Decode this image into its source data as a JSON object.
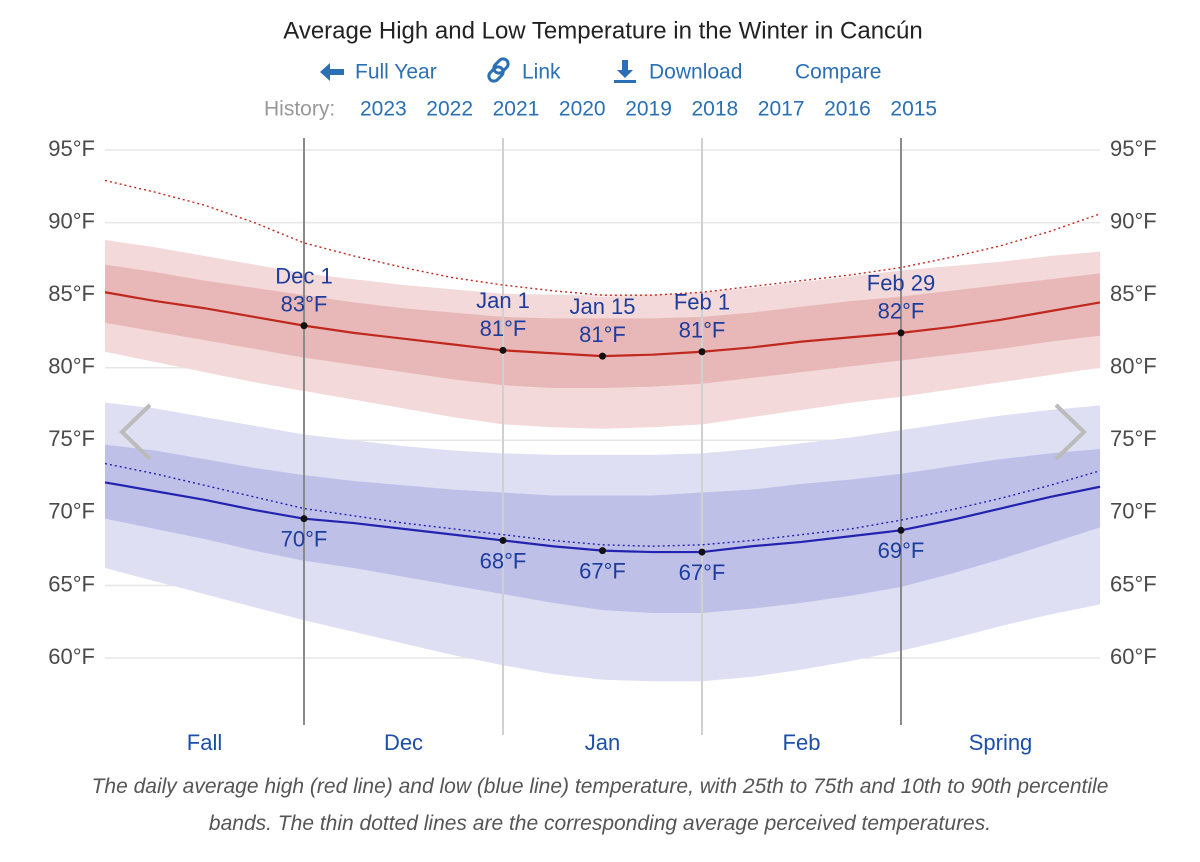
{
  "chart_data": {
    "type": "line",
    "title": "Average High and Low Temperature in the Winter in Cancún",
    "links": [
      "Full Year",
      "Link",
      "Download",
      "Compare"
    ],
    "history_label": "History:",
    "history_years": [
      "2023",
      "2022",
      "2021",
      "2020",
      "2019",
      "2018",
      "2017",
      "2016",
      "2015"
    ],
    "caption": "The daily average high (red line) and low (blue line) temperature, with 25th to 75th and 10th to 90th percentile bands. The thin dotted lines are the corresponding average perceived temperatures.",
    "categories": [
      null,
      null,
      null,
      null,
      "Dec 1",
      null,
      null,
      null,
      "Jan 1",
      null,
      "Jan 15",
      null,
      "Feb 1",
      null,
      null,
      null,
      "Feb 29",
      null,
      null,
      null,
      null
    ],
    "section_labels": [
      "Fall",
      "Dec",
      "Jan",
      "Feb",
      "Spring"
    ],
    "ylim": [
      55,
      96
    ],
    "yticks": [
      {
        "value": 60,
        "label": "60°F"
      },
      {
        "value": 65,
        "label": "65°F"
      },
      {
        "value": 70,
        "label": "70°F"
      },
      {
        "value": 75,
        "label": "75°F"
      },
      {
        "value": 80,
        "label": "80°F"
      },
      {
        "value": 85,
        "label": "85°F"
      },
      {
        "value": 90,
        "label": "90°F"
      },
      {
        "value": 95,
        "label": "95°F"
      }
    ],
    "grid": true,
    "bands": [
      {
        "color": "#f3d9d9",
        "lower": [
          81.1,
          80.4,
          79.7,
          79.0,
          78.4,
          77.8,
          77.2,
          76.6,
          76.1,
          75.9,
          75.8,
          75.9,
          76.1,
          76.6,
          77.1,
          77.6,
          78.0,
          78.5,
          79.0,
          79.5,
          80.0
        ],
        "upper": [
          88.8,
          88.3,
          87.7,
          87.1,
          86.5,
          86.1,
          85.7,
          85.4,
          85.1,
          85.0,
          84.9,
          85.0,
          85.2,
          85.5,
          85.9,
          86.3,
          86.7,
          87.0,
          87.3,
          87.7,
          88.0
        ]
      },
      {
        "color": "#e8b8b8",
        "lower": [
          83.1,
          82.5,
          81.9,
          81.3,
          80.7,
          80.2,
          79.7,
          79.2,
          78.8,
          78.6,
          78.6,
          78.7,
          78.9,
          79.3,
          79.7,
          80.1,
          80.5,
          80.9,
          81.3,
          81.8,
          82.2
        ],
        "upper": [
          87.1,
          86.6,
          86.0,
          85.5,
          85.0,
          84.5,
          84.1,
          83.8,
          83.5,
          83.4,
          83.4,
          83.4,
          83.5,
          83.8,
          84.2,
          84.6,
          84.9,
          85.3,
          85.7,
          86.1,
          86.5
        ]
      },
      {
        "color": "#dedff3",
        "lower": [
          66.2,
          65.3,
          64.4,
          63.5,
          62.6,
          61.8,
          61.0,
          60.2,
          59.5,
          58.9,
          58.5,
          58.4,
          58.4,
          58.7,
          59.2,
          59.8,
          60.5,
          61.3,
          62.2,
          63.0,
          63.7
        ],
        "upper": [
          77.6,
          77.2,
          76.6,
          76.0,
          75.4,
          75.0,
          74.6,
          74.3,
          74.1,
          74.0,
          74.0,
          74.0,
          74.1,
          74.4,
          74.8,
          75.2,
          75.7,
          76.2,
          76.7,
          77.1,
          77.4
        ]
      },
      {
        "color": "#bfc0e8",
        "lower": [
          69.6,
          68.9,
          68.2,
          67.4,
          66.7,
          66.2,
          65.6,
          65.0,
          64.4,
          63.8,
          63.3,
          63.1,
          63.1,
          63.4,
          63.8,
          64.3,
          64.9,
          65.8,
          66.8,
          67.9,
          69.0
        ],
        "upper": [
          74.7,
          74.3,
          73.7,
          73.1,
          72.6,
          72.2,
          71.9,
          71.6,
          71.4,
          71.2,
          71.2,
          71.2,
          71.4,
          71.6,
          72.0,
          72.3,
          72.7,
          73.2,
          73.7,
          74.1,
          74.4
        ]
      }
    ],
    "series": [
      {
        "color": "#c0281e",
        "style": "solid",
        "label_position": "above",
        "values": [
          85.2,
          84.6,
          84.1,
          83.5,
          82.9,
          82.4,
          82.0,
          81.6,
          81.2,
          81.0,
          80.8,
          80.9,
          81.1,
          81.4,
          81.8,
          82.1,
          82.4,
          82.8,
          83.3,
          83.9,
          84.5
        ],
        "value_labels": [
          null,
          null,
          null,
          null,
          "83°F",
          null,
          null,
          null,
          "81°F",
          null,
          "81°F",
          null,
          "81°F",
          null,
          null,
          null,
          "82°F",
          null,
          null,
          null,
          null
        ]
      },
      {
        "color": "#2323b0",
        "style": "solid",
        "label_position": "below",
        "values": [
          72.1,
          71.5,
          70.9,
          70.2,
          69.6,
          69.3,
          68.9,
          68.5,
          68.1,
          67.7,
          67.4,
          67.3,
          67.3,
          67.7,
          68.0,
          68.4,
          68.8,
          69.5,
          70.3,
          71.1,
          71.8
        ],
        "value_labels": [
          null,
          null,
          null,
          null,
          "70°F",
          null,
          null,
          null,
          "68°F",
          null,
          "67°F",
          null,
          "67°F",
          null,
          null,
          null,
          "69°F",
          null,
          null,
          null,
          null
        ]
      },
      {
        "color": "#c0281e",
        "style": "dotted",
        "values": [
          92.9,
          92.1,
          91.2,
          90.0,
          88.6,
          87.7,
          86.9,
          86.2,
          85.7,
          85.3,
          85.0,
          85.0,
          85.2,
          85.6,
          86.0,
          86.4,
          86.9,
          87.6,
          88.4,
          89.4,
          90.6
        ]
      },
      {
        "color": "#2323b0",
        "style": "dotted",
        "values": [
          73.4,
          72.7,
          71.9,
          71.1,
          70.3,
          69.8,
          69.3,
          68.9,
          68.5,
          68.1,
          67.8,
          67.7,
          67.8,
          68.1,
          68.5,
          68.9,
          69.5,
          70.2,
          71.0,
          71.9,
          72.9
        ]
      }
    ]
  }
}
